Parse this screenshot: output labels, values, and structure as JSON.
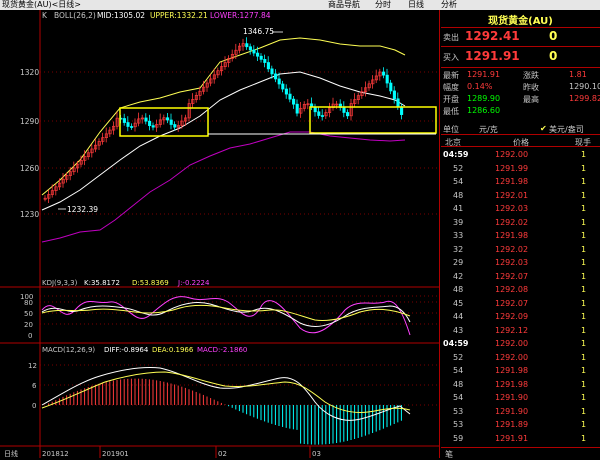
{
  "window": {
    "title": "现货黄金(AU)<日线>",
    "menu": [
      "商品导航",
      "分时",
      "日线",
      "分析"
    ]
  },
  "chart": {
    "main_legend": {
      "type": "K",
      "indicator": "BOLL(26,2)",
      "mid": "MID:1305.02",
      "upper": "UPPER:1332.21",
      "lower": "LOWER:1277.84"
    },
    "annotations": {
      "high": "1346.75",
      "low": "1232.39"
    },
    "y_labels": [
      "1320",
      "1290",
      "1260",
      "1230"
    ],
    "kdj_legend": {
      "name": "KDJ(9,3,3)",
      "k": "K:35.8172",
      "d": "D:53.8369",
      "j": "J:-0.2224"
    },
    "kdj_y_labels": [
      "100",
      "80",
      "50",
      "20",
      "0"
    ],
    "macd_legend": {
      "name": "MACD(12,26,9)",
      "diff": "DIFF:-0.8964",
      "dea": "DEA:0.1966",
      "macd": "MACD:-2.1860"
    },
    "macd_y_labels": [
      "12",
      "6",
      "0"
    ],
    "x_labels": [
      "日线",
      "201812",
      "201901",
      "02",
      "03"
    ],
    "colors": {
      "up": "#ff3b3b",
      "down": "#00ffff",
      "mid": "#ffffff",
      "upper": "#ffff54",
      "lower": "#c000c0",
      "box": "#ffff00"
    }
  },
  "panel": {
    "title": "现货黄金(AU)",
    "sell": {
      "label": "卖出",
      "price": "1292.41",
      "size": "0"
    },
    "buy": {
      "label": "买入",
      "price": "1291.91",
      "size": "0"
    },
    "stats": [
      {
        "k": "最新",
        "v": "1291.91",
        "color": "#ff3b3b"
      },
      {
        "k": "涨跌",
        "v": "1.81",
        "color": "#ff3b3b"
      },
      {
        "k": "幅度",
        "v": "0.14%",
        "color": "#ff3b3b"
      },
      {
        "k": "昨收",
        "v": "1290.10",
        "color": "#c8c8c8"
      },
      {
        "k": "开盘",
        "v": "1289.90",
        "color": "#00ff00"
      },
      {
        "k": "最高",
        "v": "1299.82",
        "color": "#ff3b3b"
      },
      {
        "k": "最低",
        "v": "1286.60",
        "color": "#00ff00"
      }
    ],
    "unit": {
      "label": "单位",
      "value": "元/克",
      "alt": "美元/盎司"
    },
    "tick_header": {
      "time": "北京",
      "price": "价格",
      "volume": "现手"
    },
    "ticks": [
      {
        "t": "04:59",
        "p": "1292.00",
        "v": "1",
        "hl": true
      },
      {
        "t": "52",
        "p": "1291.99",
        "v": "1"
      },
      {
        "t": "54",
        "p": "1291.98",
        "v": "1"
      },
      {
        "t": "48",
        "p": "1292.01",
        "v": "1"
      },
      {
        "t": "41",
        "p": "1292.03",
        "v": "1"
      },
      {
        "t": "39",
        "p": "1292.02",
        "v": "1"
      },
      {
        "t": "33",
        "p": "1291.98",
        "v": "1"
      },
      {
        "t": "32",
        "p": "1292.02",
        "v": "1"
      },
      {
        "t": "29",
        "p": "1292.03",
        "v": "1"
      },
      {
        "t": "42",
        "p": "1292.07",
        "v": "1"
      },
      {
        "t": "48",
        "p": "1292.08",
        "v": "1"
      },
      {
        "t": "45",
        "p": "1292.07",
        "v": "1"
      },
      {
        "t": "44",
        "p": "1292.09",
        "v": "1"
      },
      {
        "t": "43",
        "p": "1292.12",
        "v": "1"
      },
      {
        "t": "04:59",
        "p": "1292.00",
        "v": "1",
        "hl": true
      },
      {
        "t": "52",
        "p": "1292.00",
        "v": "1"
      },
      {
        "t": "54",
        "p": "1291.98",
        "v": "1"
      },
      {
        "t": "48",
        "p": "1291.98",
        "v": "1"
      },
      {
        "t": "54",
        "p": "1291.90",
        "v": "1"
      },
      {
        "t": "53",
        "p": "1291.90",
        "v": "1"
      },
      {
        "t": "53",
        "p": "1291.89",
        "v": "1"
      },
      {
        "t": "59",
        "p": "1291.91",
        "v": "1"
      }
    ],
    "bottom_tab": "笔"
  }
}
